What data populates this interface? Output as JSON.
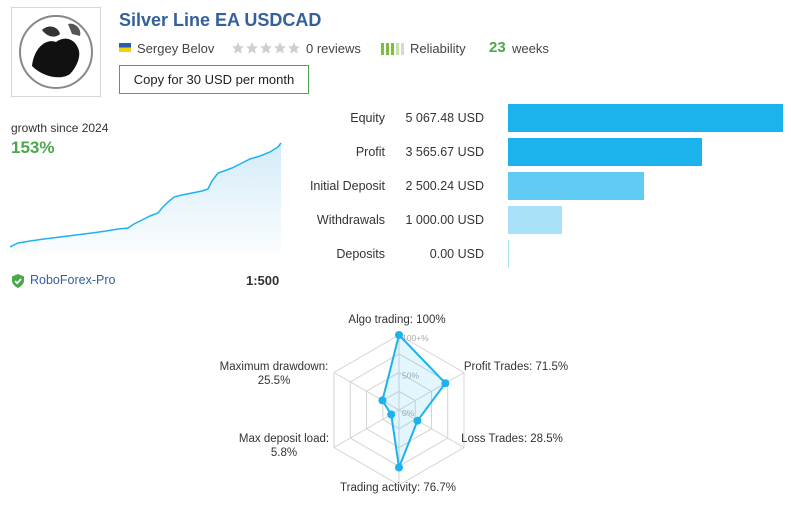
{
  "header": {
    "title": "Silver Line EA USDCAD",
    "author": "Sergey Belov",
    "reviews": "0 reviews",
    "reliability_label": "Reliability",
    "weeks_value": "23",
    "weeks_label": "weeks",
    "copy_button": "Copy for 30 USD per month"
  },
  "growth": {
    "label": "growth since 2024",
    "value": "153%"
  },
  "stats": [
    {
      "label": "Equity",
      "value": "5 067.48 USD",
      "amount": 5067.48,
      "color": "#1cb3ec"
    },
    {
      "label": "Profit",
      "value": "3 565.67 USD",
      "amount": 3565.67,
      "color": "#1cb3ec"
    },
    {
      "label": "Initial Deposit",
      "value": "2 500.24 USD",
      "amount": 2500.24,
      "color": "#5fcbf3"
    },
    {
      "label": "Withdrawals",
      "value": "1 000.00 USD",
      "amount": 1000.0,
      "color": "#a9e2f8"
    },
    {
      "label": "Deposits",
      "value": "0.00 USD",
      "amount": 0.0,
      "color": "#a9e2f8"
    }
  ],
  "broker": {
    "name": "RoboForex-Pro",
    "leverage": "1:500"
  },
  "radar": {
    "ticks": [
      "100+%",
      "50%",
      "0%"
    ],
    "axes": [
      {
        "label": "Algo trading: 100%",
        "value": 1.0
      },
      {
        "label": "Profit Trades: 71.5%",
        "value": 0.715
      },
      {
        "label": "Loss Trades: 28.5%",
        "value": 0.285
      },
      {
        "label": "Trading activity: 76.7%",
        "value": 0.767
      },
      {
        "label_line1": "Max deposit load:",
        "label_line2": "5.8%",
        "value": 0.058
      },
      {
        "label_line1": "Maximum drawdown:",
        "label_line2": "25.5%",
        "value": 0.255
      }
    ]
  },
  "colors": {
    "accent_blue": "#1cb3ec",
    "green": "#4aa84a",
    "title_blue": "#34609b"
  },
  "icons": {
    "flag": "ukraine-flag-icon",
    "stars": "star-icon",
    "reliability": "reliability-bars-icon",
    "broker_check": "shield-check-icon"
  }
}
